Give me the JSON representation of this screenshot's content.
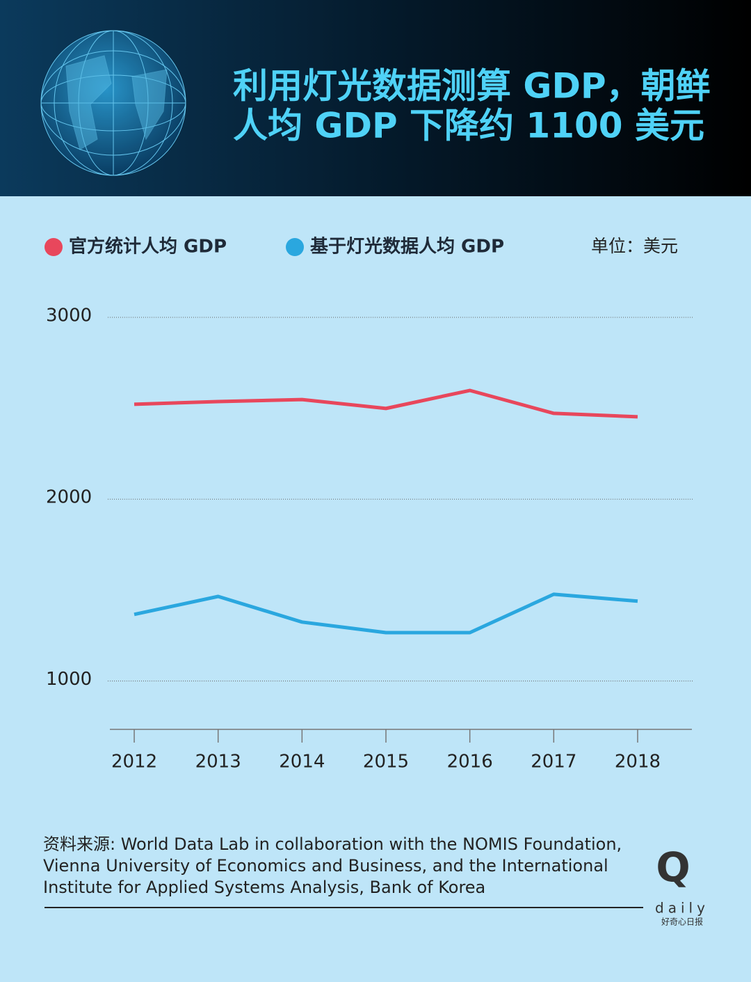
{
  "chart_data": {
    "type": "line",
    "title": [
      "利用灯光数据测算 GDP，朝鲜",
      "人均 GDP 下降约 1100 美元"
    ],
    "unit": "单位：美元",
    "categories": [
      "2012",
      "2013",
      "2014",
      "2015",
      "2016",
      "2017",
      "2018"
    ],
    "series": [
      {
        "name": "官方统计人均 GDP",
        "color": "#e8475c",
        "values": [
          2522,
          2537,
          2548,
          2499,
          2598,
          2472,
          2453
        ]
      },
      {
        "name": "基于灯光数据人均 GDP",
        "color": "#2aa7df",
        "values": [
          1366,
          1465,
          1324,
          1266,
          1266,
          1477,
          1439
        ]
      }
    ],
    "ylim": [
      730,
      3000
    ],
    "yticks": [
      1000,
      2000,
      3000
    ],
    "grid": true,
    "legend": "top",
    "source": [
      "资料来源: World Data Lab in collaboration with the NOMIS Foundation,",
      "Vienna University of Economics and Business, and the International",
      "Institute for Applied Systems Analysis, Bank of Korea"
    ],
    "logo": {
      "letter": "Q",
      "word": "daily",
      "name": "好奇心日报"
    }
  }
}
